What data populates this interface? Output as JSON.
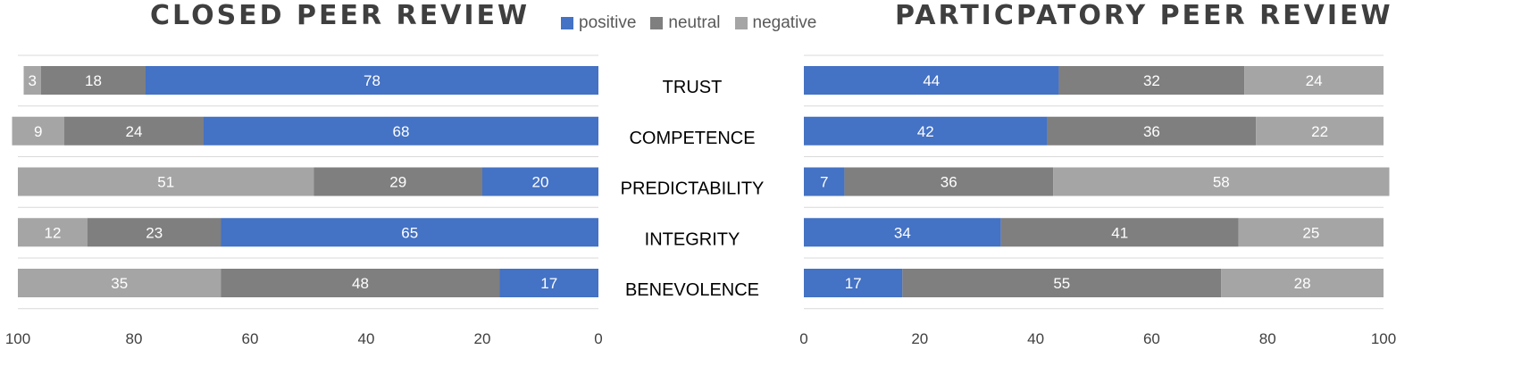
{
  "colors": {
    "positive": "#4472c4",
    "neutral": "#7f7f7f",
    "negative": "#a5a5a5",
    "grid": "#d9d9d9",
    "tick": "#404040",
    "category": "#000000"
  },
  "legend": [
    {
      "key": "positive",
      "label": "positive"
    },
    {
      "key": "neutral",
      "label": "neutral"
    },
    {
      "key": "negative",
      "label": "negative"
    }
  ],
  "chart_data": [
    {
      "type": "bar",
      "orientation": "horizontal",
      "stacked": true,
      "title": "CLOSED PEER REVIEW",
      "x_reversed": true,
      "xlim": [
        0,
        100
      ],
      "xticks": [
        100,
        80,
        60,
        40,
        20,
        0
      ],
      "categories": [
        "TRUST",
        "COMPETENCE",
        "PREDICTABILITY",
        "INTEGRITY",
        "BENEVOLENCE"
      ],
      "stack_order": [
        "positive",
        "neutral",
        "negative"
      ],
      "series": [
        {
          "name": "positive",
          "values": [
            78,
            68,
            20,
            65,
            17
          ]
        },
        {
          "name": "neutral",
          "values": [
            18,
            24,
            29,
            23,
            48
          ]
        },
        {
          "name": "negative",
          "values": [
            3,
            9,
            51,
            12,
            35
          ]
        }
      ],
      "legend_position": "top-center",
      "grid": true
    },
    {
      "type": "bar",
      "orientation": "horizontal",
      "stacked": true,
      "title": "PARTICPATORY PEER REVIEW",
      "x_reversed": false,
      "xlim": [
        0,
        100
      ],
      "xticks": [
        0,
        20,
        40,
        60,
        80,
        100
      ],
      "categories": [
        "TRUST",
        "COMPETENCE",
        "PREDICTABILITY",
        "INTEGRITY",
        "BENEVOLENCE"
      ],
      "stack_order": [
        "positive",
        "neutral",
        "negative"
      ],
      "series": [
        {
          "name": "positive",
          "values": [
            44,
            42,
            7,
            34,
            17
          ]
        },
        {
          "name": "neutral",
          "values": [
            32,
            36,
            36,
            41,
            55
          ]
        },
        {
          "name": "negative",
          "values": [
            24,
            22,
            58,
            25,
            28
          ]
        }
      ],
      "legend_position": "top-center",
      "grid": true
    }
  ]
}
